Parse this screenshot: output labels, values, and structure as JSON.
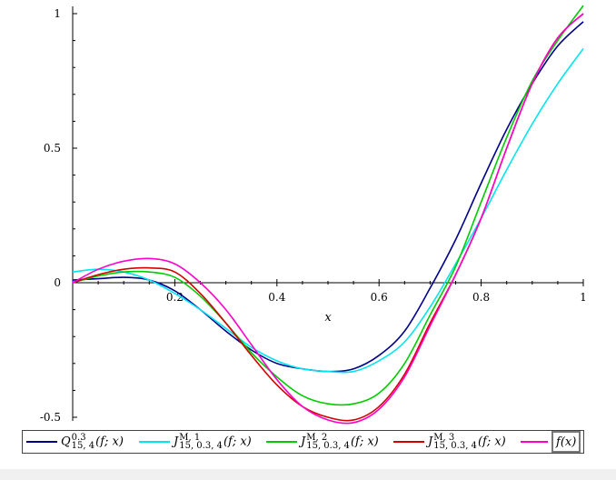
{
  "chart_data": {
    "type": "line",
    "xlabel": "x",
    "ylabel": "",
    "xlim": [
      0,
      1
    ],
    "ylim": [
      -0.5,
      1
    ],
    "x_ticks": [
      "0.2",
      "0.4",
      "0.6",
      "0.8",
      "1"
    ],
    "y_ticks": [
      "1",
      "0.5",
      "0",
      "-0.5"
    ],
    "grid": false,
    "legend_position": "bottom",
    "series": [
      {
        "name": "Q^{0.3}_{15,4}(f; x)",
        "color": "#00008b",
        "x": [
          0,
          0.05,
          0.1,
          0.15,
          0.2,
          0.25,
          0.3,
          0.35,
          0.4,
          0.45,
          0.5,
          0.55,
          0.6,
          0.65,
          0.7,
          0.75,
          0.8,
          0.85,
          0.9,
          0.95,
          1
        ],
        "y": [
          0.01,
          0.015,
          0.02,
          0.01,
          -0.03,
          -0.1,
          -0.18,
          -0.25,
          -0.3,
          -0.32,
          -0.33,
          -0.32,
          -0.27,
          -0.18,
          -0.02,
          0.16,
          0.37,
          0.57,
          0.74,
          0.88,
          0.97
        ]
      },
      {
        "name": "J^{M,1}_{15,0.3,4}(f; x)",
        "color": "#00e5ee",
        "x": [
          0,
          0.05,
          0.1,
          0.15,
          0.2,
          0.25,
          0.3,
          0.35,
          0.4,
          0.45,
          0.5,
          0.55,
          0.6,
          0.65,
          0.7,
          0.75,
          0.8,
          0.85,
          0.9,
          0.95,
          1
        ],
        "y": [
          0.04,
          0.05,
          0.04,
          0.01,
          -0.04,
          -0.1,
          -0.17,
          -0.24,
          -0.29,
          -0.32,
          -0.33,
          -0.33,
          -0.29,
          -0.22,
          -0.09,
          0.07,
          0.24,
          0.42,
          0.59,
          0.74,
          0.87
        ]
      },
      {
        "name": "J^{M,2}_{15,0.3,4}(f; x)",
        "color": "#00cc00",
        "x": [
          0,
          0.05,
          0.1,
          0.15,
          0.2,
          0.25,
          0.3,
          0.35,
          0.4,
          0.45,
          0.5,
          0.55,
          0.6,
          0.65,
          0.7,
          0.75,
          0.8,
          0.85,
          0.9,
          0.95,
          1
        ],
        "y": [
          0,
          0.025,
          0.04,
          0.04,
          0.02,
          -0.05,
          -0.15,
          -0.26,
          -0.35,
          -0.42,
          -0.45,
          -0.45,
          -0.41,
          -0.3,
          -0.12,
          0.06,
          0.3,
          0.54,
          0.75,
          0.9,
          1.03
        ]
      },
      {
        "name": "J^{M,3}_{15,0.3,4}(f; x)",
        "color": "#d40000",
        "x": [
          0,
          0.05,
          0.1,
          0.15,
          0.2,
          0.25,
          0.3,
          0.35,
          0.4,
          0.45,
          0.5,
          0.55,
          0.6,
          0.65,
          0.7,
          0.75,
          0.8,
          0.85,
          0.9,
          0.95,
          1
        ],
        "y": [
          0,
          0.03,
          0.05,
          0.055,
          0.04,
          -0.04,
          -0.15,
          -0.27,
          -0.38,
          -0.46,
          -0.5,
          -0.51,
          -0.46,
          -0.34,
          -0.15,
          0.03,
          0.24,
          0.5,
          0.74,
          0.91,
          1
        ]
      },
      {
        "name": "f(x)",
        "color": "#ff00cc",
        "x": [
          0,
          0.05,
          0.1,
          0.15,
          0.2,
          0.25,
          0.3,
          0.35,
          0.4,
          0.45,
          0.5,
          0.55,
          0.6,
          0.65,
          0.7,
          0.75,
          0.8,
          0.85,
          0.9,
          0.95,
          1
        ],
        "y": [
          0,
          0.05,
          0.08,
          0.09,
          0.07,
          0,
          -0.1,
          -0.23,
          -0.36,
          -0.46,
          -0.51,
          -0.52,
          -0.47,
          -0.35,
          -0.16,
          0.03,
          0.24,
          0.5,
          0.74,
          0.91,
          1
        ]
      }
    ]
  },
  "legend": {
    "items": [
      {
        "main": "Q",
        "sup": "0.3",
        "sub": "15, 4",
        "args": "(f; x)"
      },
      {
        "main": "J",
        "sup": "M, 1",
        "sub": "15, 0.3, 4",
        "args": "(f; x)"
      },
      {
        "main": "J",
        "sup": "M, 2",
        "sub": "15, 0.3, 4",
        "args": "(f; x)"
      },
      {
        "main": "J",
        "sup": "M, 3",
        "sub": "15, 0.3, 4",
        "args": "(f; x)"
      },
      {
        "main": "f",
        "sup": "",
        "sub": "",
        "args": "(x)"
      }
    ]
  }
}
